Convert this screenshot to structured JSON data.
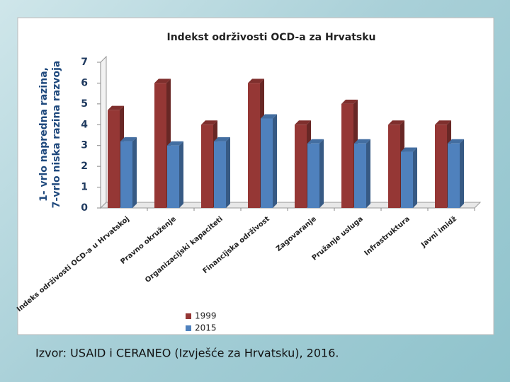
{
  "chart_data": {
    "type": "bar",
    "title": "Indekst održivosti OCD-a za Hrvatsku",
    "ylabel": [
      "1- vrlo napredna razina,",
      "7-vrlo niska razina razvoja"
    ],
    "categories": [
      "Indeks održivosti OCD-a u Hrvatskoj",
      "Pravno okruženje",
      "Organizacijski kapaciteti",
      "Financijska održivost",
      "Zagovaranje",
      "Pružanje usluga",
      "Infrastruktura",
      "Javni imidž"
    ],
    "series": [
      {
        "name": "1999",
        "color": "#953735",
        "values": [
          4.7,
          6.0,
          4.0,
          6.0,
          4.0,
          5.0,
          4.0,
          4.0
        ]
      },
      {
        "name": "2015",
        "color": "#4f81bd",
        "values": [
          3.2,
          3.0,
          3.2,
          4.3,
          3.1,
          3.1,
          2.7,
          3.1
        ]
      }
    ],
    "ylim": [
      0,
      7
    ],
    "yticks": [
      0,
      1,
      2,
      3,
      4,
      5,
      6,
      7
    ],
    "grid": false,
    "legend": "bottom"
  },
  "footer": "Izvor: USAID i CERANEO (Izvješće za Hrvatsku), 2016."
}
